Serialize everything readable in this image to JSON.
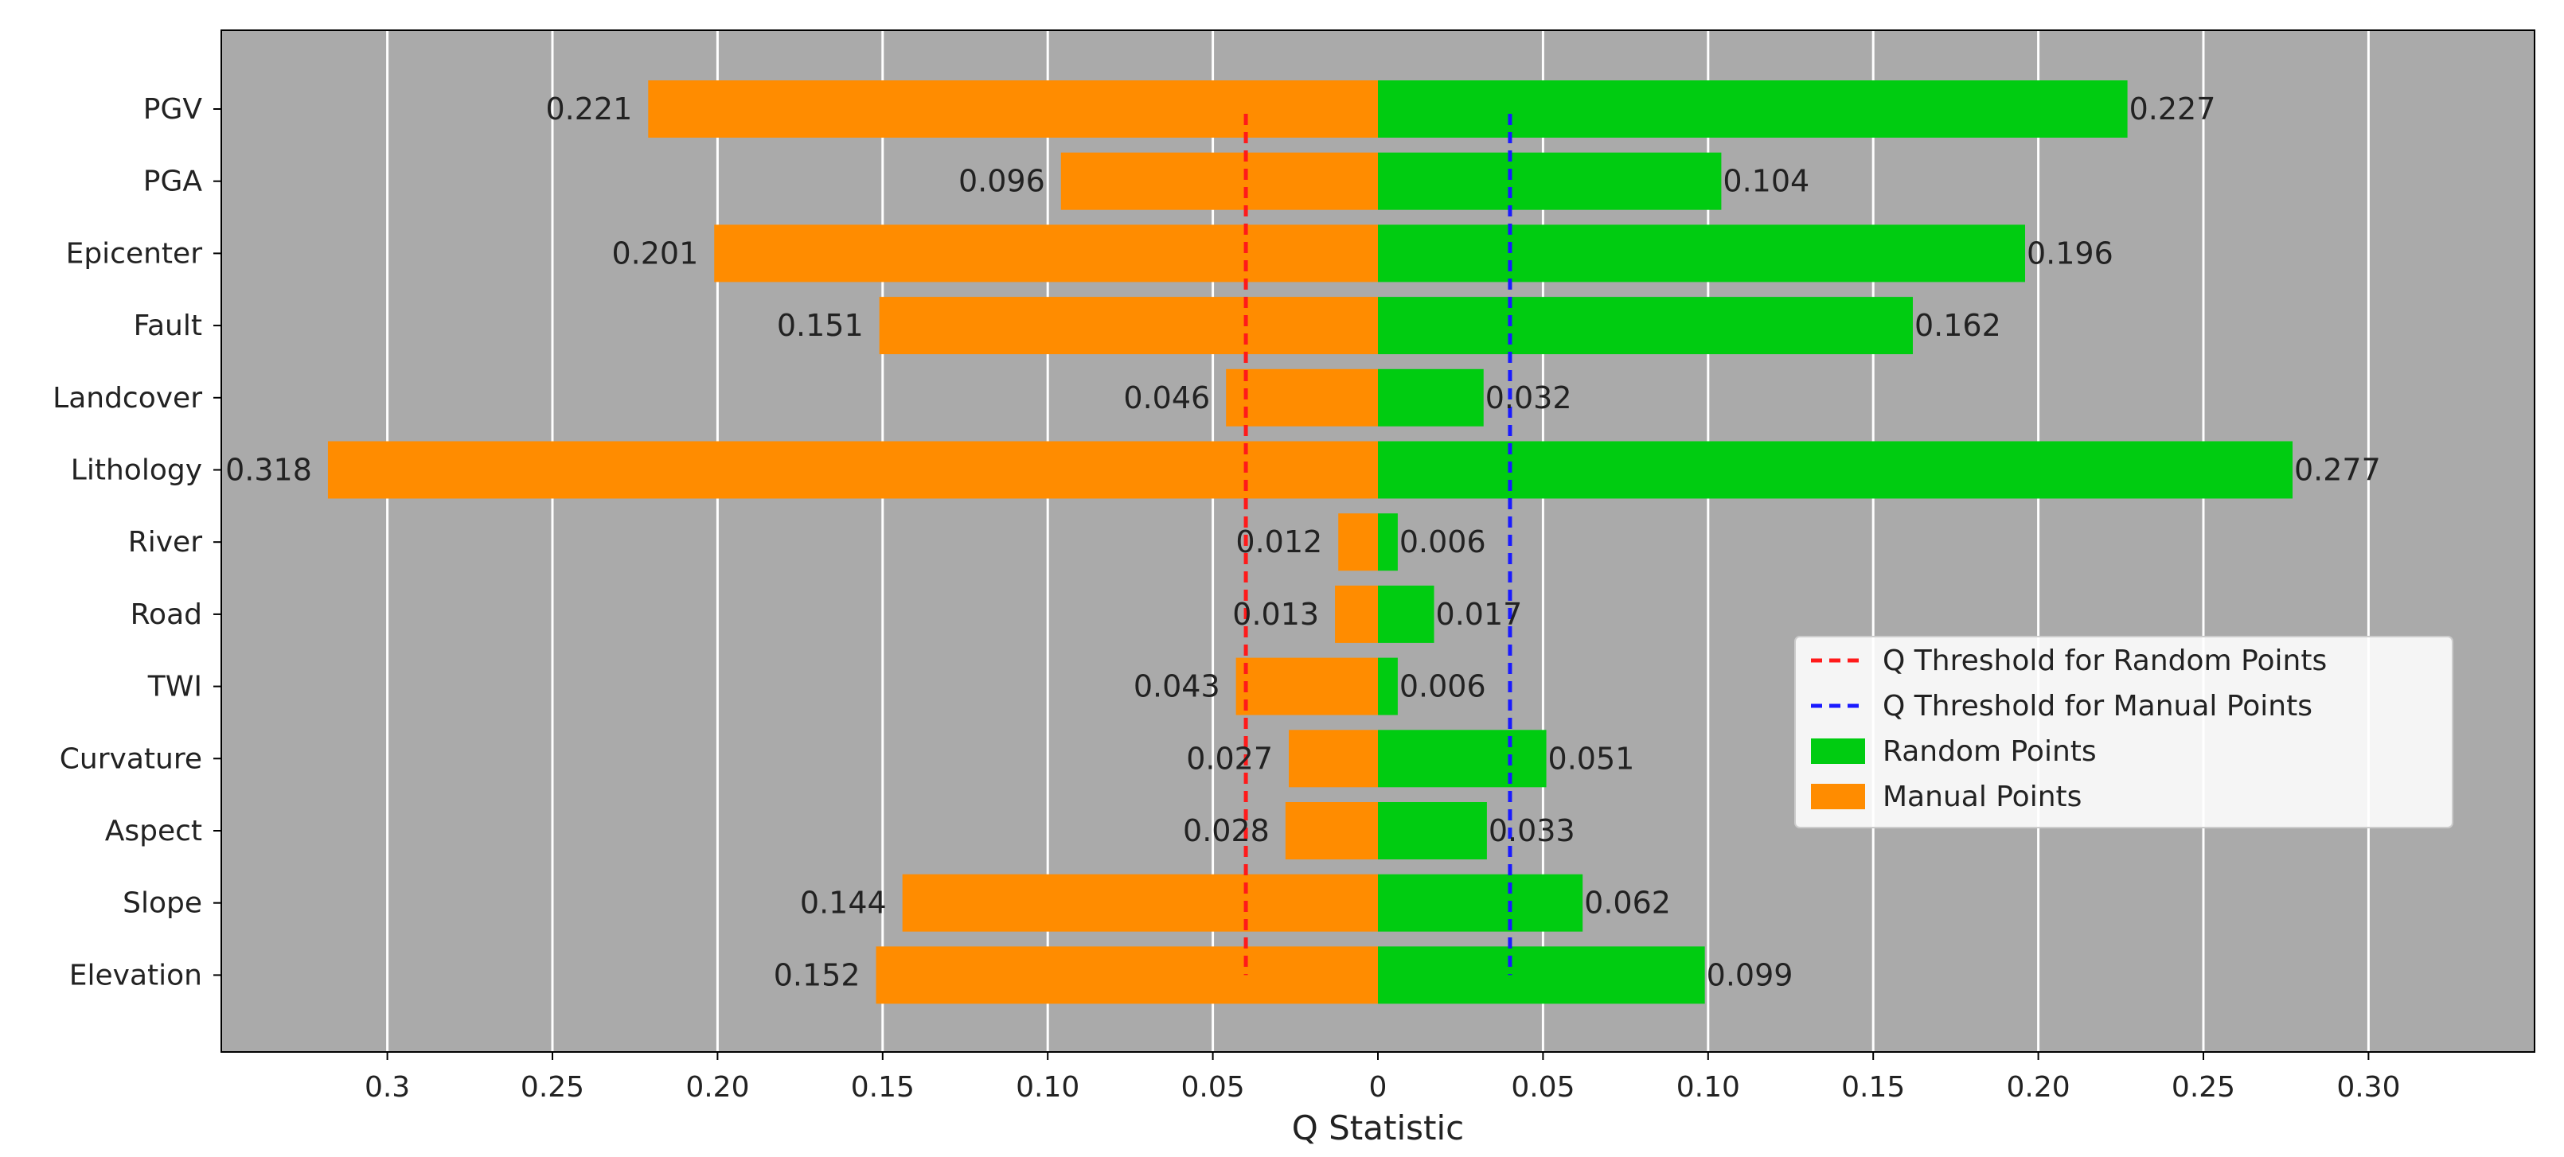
{
  "chart_data": {
    "type": "bar",
    "orientation": "horizontal-butterfly",
    "title": "",
    "xlabel": "Q Statistic",
    "ylabel": "",
    "xlim": [
      -0.3475,
      0.3475
    ],
    "grid": true,
    "legend_position": "center-right",
    "categories": [
      "PGV",
      "PGA",
      "Epicenter",
      "Fault",
      "Landcover",
      "Lithology",
      "River",
      "Road",
      "TWI",
      "Curvature",
      "Aspect",
      "Slope",
      "Elevation"
    ],
    "series": [
      {
        "name": "Random Points",
        "color": "#00cc11",
        "side": "right",
        "values": [
          0.227,
          0.104,
          0.196,
          0.162,
          0.032,
          0.277,
          0.006,
          0.017,
          0.006,
          0.051,
          0.033,
          0.062,
          0.099
        ],
        "labels": [
          "0.227",
          "0.104",
          "0.196",
          "0.162",
          "0.032",
          "0.277",
          "0.006",
          "0.017",
          "0.006",
          "0.051",
          "0.033",
          "0.062",
          "0.099"
        ]
      },
      {
        "name": "Manual Points",
        "color": "#ff8c00",
        "side": "left",
        "values": [
          0.221,
          0.096,
          0.201,
          0.151,
          0.046,
          0.318,
          0.012,
          0.013,
          0.043,
          0.027,
          0.028,
          0.144,
          0.152
        ],
        "labels": [
          "0.221",
          "0.096",
          "0.201",
          "0.151",
          "0.046",
          "0.318",
          "0.012",
          "0.013",
          "0.043",
          "0.027",
          "0.028",
          "0.144",
          "0.152"
        ]
      }
    ],
    "thresholds": [
      {
        "name": "Q Threshold for Random Points",
        "value": -0.04,
        "color": "#ff1a1a",
        "style": "dashed"
      },
      {
        "name": "Q Threshold for Manual Points",
        "value": 0.04,
        "color": "#1a1aff",
        "style": "dashed"
      }
    ],
    "x_ticks": [
      {
        "value": -0.3,
        "label": "0.3"
      },
      {
        "value": -0.25,
        "label": "0.25"
      },
      {
        "value": -0.2,
        "label": "0.20"
      },
      {
        "value": -0.15,
        "label": "0.15"
      },
      {
        "value": -0.1,
        "label": "0.10"
      },
      {
        "value": -0.05,
        "label": "0.05"
      },
      {
        "value": 0.0,
        "label": "0"
      },
      {
        "value": 0.05,
        "label": "0.05"
      },
      {
        "value": 0.1,
        "label": "0.10"
      },
      {
        "value": 0.15,
        "label": "0.15"
      },
      {
        "value": 0.2,
        "label": "0.20"
      },
      {
        "value": 0.25,
        "label": "0.25"
      },
      {
        "value": 0.3,
        "label": "0.30"
      }
    ],
    "colors": {
      "plot_background": "#aaaaaa",
      "grid": "#ffffff",
      "text": "#222222"
    }
  }
}
